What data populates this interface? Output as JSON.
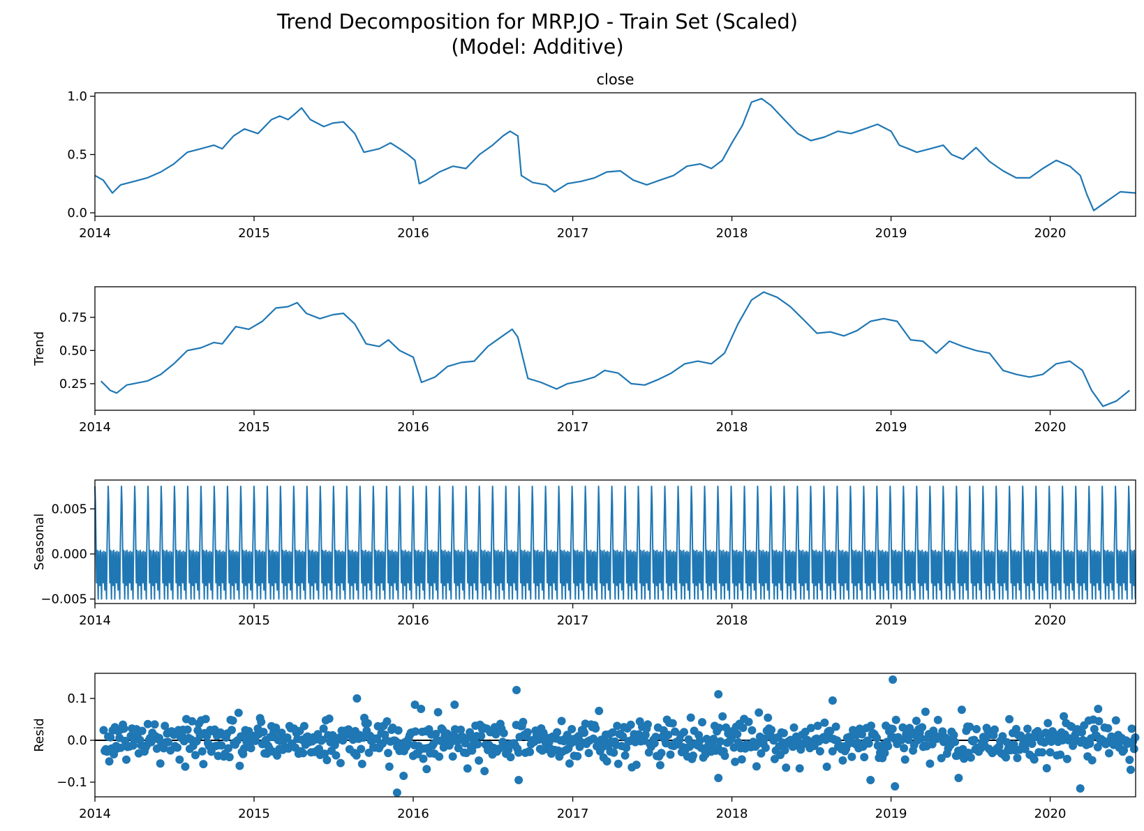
{
  "figure": {
    "title_line1": "Trend Decomposition for MRP.JO - Train Set (Scaled)",
    "title_line2": "(Model: Additive)",
    "line_color": "#1f77b4",
    "x_domain": [
      "2014-01-01",
      "2020-07-15"
    ],
    "x_ticks": [
      "2014",
      "2015",
      "2016",
      "2017",
      "2018",
      "2019",
      "2020"
    ]
  },
  "chart_data": [
    {
      "type": "line",
      "name": "close",
      "title": "close",
      "ylabel": "",
      "ylim": [
        -0.03,
        1.03
      ],
      "y_ticks": [
        {
          "v": 0.0,
          "label": "0.0"
        },
        {
          "v": 0.5,
          "label": "0.5"
        },
        {
          "v": 1.0,
          "label": "1.0"
        }
      ],
      "x": [
        "2014-01-01",
        "2014-01-20",
        "2014-02-10",
        "2014-03-01",
        "2014-04-01",
        "2014-05-01",
        "2014-06-01",
        "2014-07-01",
        "2014-08-01",
        "2014-09-01",
        "2014-10-01",
        "2014-10-20",
        "2014-11-15",
        "2014-12-10",
        "2015-01-10",
        "2015-02-10",
        "2015-03-01",
        "2015-03-20",
        "2015-04-05",
        "2015-04-20",
        "2015-05-10",
        "2015-06-10",
        "2015-07-01",
        "2015-07-25",
        "2015-08-20",
        "2015-09-10",
        "2015-10-15",
        "2015-11-10",
        "2015-12-01",
        "2015-12-20",
        "2016-01-05",
        "2016-01-15",
        "2016-02-01",
        "2016-03-01",
        "2016-04-01",
        "2016-05-01",
        "2016-06-01",
        "2016-07-01",
        "2016-07-25",
        "2016-08-10",
        "2016-08-28",
        "2016-09-05",
        "2016-10-01",
        "2016-11-01",
        "2016-11-20",
        "2016-12-20",
        "2017-01-20",
        "2017-02-20",
        "2017-03-20",
        "2017-04-20",
        "2017-05-20",
        "2017-06-20",
        "2017-07-20",
        "2017-08-20",
        "2017-09-20",
        "2017-10-20",
        "2017-11-15",
        "2017-12-10",
        "2018-01-01",
        "2018-01-25",
        "2018-02-15",
        "2018-03-10",
        "2018-04-01",
        "2018-05-01",
        "2018-06-01",
        "2018-07-01",
        "2018-08-01",
        "2018-09-01",
        "2018-10-01",
        "2018-11-01",
        "2018-12-01",
        "2019-01-01",
        "2019-01-20",
        "2019-02-10",
        "2019-03-01",
        "2019-04-01",
        "2019-05-01",
        "2019-05-20",
        "2019-06-15",
        "2019-07-15",
        "2019-08-15",
        "2019-09-15",
        "2019-10-15",
        "2019-11-15",
        "2019-12-15",
        "2020-01-15",
        "2020-02-15",
        "2020-03-10",
        "2020-03-25",
        "2020-04-10",
        "2020-05-10",
        "2020-06-10",
        "2020-07-15"
      ],
      "values": [
        0.32,
        0.28,
        0.17,
        0.24,
        0.27,
        0.3,
        0.35,
        0.42,
        0.52,
        0.55,
        0.58,
        0.55,
        0.66,
        0.72,
        0.68,
        0.8,
        0.83,
        0.8,
        0.85,
        0.9,
        0.8,
        0.74,
        0.77,
        0.78,
        0.68,
        0.52,
        0.55,
        0.6,
        0.55,
        0.5,
        0.45,
        0.25,
        0.28,
        0.35,
        0.4,
        0.38,
        0.5,
        0.58,
        0.66,
        0.7,
        0.66,
        0.32,
        0.26,
        0.24,
        0.18,
        0.25,
        0.27,
        0.3,
        0.35,
        0.36,
        0.28,
        0.24,
        0.28,
        0.32,
        0.4,
        0.42,
        0.38,
        0.45,
        0.6,
        0.75,
        0.95,
        0.98,
        0.92,
        0.8,
        0.68,
        0.62,
        0.65,
        0.7,
        0.68,
        0.72,
        0.76,
        0.7,
        0.58,
        0.55,
        0.52,
        0.55,
        0.58,
        0.5,
        0.46,
        0.56,
        0.44,
        0.36,
        0.3,
        0.3,
        0.38,
        0.45,
        0.4,
        0.32,
        0.16,
        0.02,
        0.1,
        0.18,
        0.17
      ]
    },
    {
      "type": "line",
      "name": "Trend",
      "title": "",
      "ylabel": "Trend",
      "ylim": [
        0.05,
        0.98
      ],
      "y_ticks": [
        {
          "v": 0.25,
          "label": "0.25"
        },
        {
          "v": 0.5,
          "label": "0.50"
        },
        {
          "v": 0.75,
          "label": "0.75"
        }
      ],
      "x": [
        "2014-01-15",
        "2014-02-05",
        "2014-02-20",
        "2014-03-15",
        "2014-05-01",
        "2014-06-01",
        "2014-07-01",
        "2014-08-01",
        "2014-09-01",
        "2014-10-01",
        "2014-10-20",
        "2014-11-20",
        "2014-12-20",
        "2015-01-20",
        "2015-02-20",
        "2015-03-20",
        "2015-04-10",
        "2015-05-01",
        "2015-06-01",
        "2015-07-01",
        "2015-07-25",
        "2015-08-20",
        "2015-09-15",
        "2015-10-15",
        "2015-11-05",
        "2015-12-01",
        "2016-01-01",
        "2016-01-20",
        "2016-02-20",
        "2016-03-20",
        "2016-04-20",
        "2016-05-20",
        "2016-06-20",
        "2016-07-20",
        "2016-08-15",
        "2016-08-28",
        "2016-09-20",
        "2016-10-20",
        "2016-11-25",
        "2016-12-20",
        "2017-01-20",
        "2017-02-20",
        "2017-03-15",
        "2017-04-15",
        "2017-05-15",
        "2017-06-15",
        "2017-07-15",
        "2017-08-15",
        "2017-09-15",
        "2017-10-15",
        "2017-11-15",
        "2017-12-15",
        "2018-01-15",
        "2018-02-15",
        "2018-03-15",
        "2018-04-15",
        "2018-05-15",
        "2018-06-15",
        "2018-07-15",
        "2018-08-15",
        "2018-09-15",
        "2018-10-15",
        "2018-11-15",
        "2018-12-15",
        "2019-01-15",
        "2019-02-15",
        "2019-03-15",
        "2019-04-15",
        "2019-05-15",
        "2019-06-15",
        "2019-07-15",
        "2019-08-15",
        "2019-09-15",
        "2019-10-15",
        "2019-11-15",
        "2019-12-15",
        "2020-01-15",
        "2020-02-15",
        "2020-03-15",
        "2020-04-05",
        "2020-05-01",
        "2020-06-01",
        "2020-07-01"
      ],
      "values": [
        0.27,
        0.2,
        0.18,
        0.24,
        0.27,
        0.32,
        0.4,
        0.5,
        0.52,
        0.56,
        0.55,
        0.68,
        0.66,
        0.72,
        0.82,
        0.83,
        0.86,
        0.78,
        0.74,
        0.77,
        0.78,
        0.7,
        0.55,
        0.53,
        0.58,
        0.5,
        0.45,
        0.26,
        0.3,
        0.38,
        0.41,
        0.42,
        0.53,
        0.6,
        0.66,
        0.6,
        0.29,
        0.26,
        0.21,
        0.25,
        0.27,
        0.3,
        0.35,
        0.33,
        0.25,
        0.24,
        0.28,
        0.33,
        0.4,
        0.42,
        0.4,
        0.48,
        0.7,
        0.88,
        0.94,
        0.9,
        0.83,
        0.73,
        0.63,
        0.64,
        0.61,
        0.65,
        0.72,
        0.74,
        0.72,
        0.58,
        0.57,
        0.48,
        0.57,
        0.53,
        0.5,
        0.48,
        0.35,
        0.32,
        0.3,
        0.32,
        0.4,
        0.42,
        0.35,
        0.2,
        0.08,
        0.12,
        0.2
      ]
    },
    {
      "type": "line",
      "name": "Seasonal",
      "title": "",
      "ylabel": "Seasonal",
      "ylim": [
        -0.0055,
        0.0082
      ],
      "y_ticks": [
        {
          "v": -0.005,
          "label": "−0.005"
        },
        {
          "v": 0.0,
          "label": "0.000"
        },
        {
          "v": 0.005,
          "label": "0.005"
        }
      ],
      "period_days": 30.4,
      "cycle": [
        0.0075,
        0.0055,
        0.001,
        -0.0032,
        0.0004,
        -0.0022,
        -0.005,
        0.0003,
        -0.0012,
        -0.0035,
        0.0004,
        -0.0018,
        -0.005,
        0.0002,
        -0.0008,
        -0.0032,
        0.0003,
        -0.002,
        -0.004,
        0.0002,
        -0.0026,
        -0.005,
        0.001,
        0.004
      ]
    },
    {
      "type": "scatter",
      "name": "Resid",
      "title": "",
      "ylabel": "Resid",
      "ylim": [
        -0.135,
        0.16
      ],
      "y_ticks": [
        {
          "v": -0.1,
          "label": "−0.1"
        },
        {
          "v": 0.0,
          "label": "0.0"
        },
        {
          "v": 0.1,
          "label": "0.1"
        }
      ],
      "baseline": 0.0,
      "noise_sd": 0.026,
      "outliers": [
        {
          "x": "2015-08-25",
          "y": 0.1
        },
        {
          "x": "2015-11-25",
          "y": -0.125
        },
        {
          "x": "2015-12-10",
          "y": -0.085
        },
        {
          "x": "2016-01-05",
          "y": 0.085
        },
        {
          "x": "2016-04-05",
          "y": 0.085
        },
        {
          "x": "2016-08-25",
          "y": 0.12
        },
        {
          "x": "2016-08-30",
          "y": -0.095
        },
        {
          "x": "2017-12-01",
          "y": 0.11
        },
        {
          "x": "2017-12-01",
          "y": -0.09
        },
        {
          "x": "2018-08-20",
          "y": 0.095
        },
        {
          "x": "2018-11-15",
          "y": -0.095
        },
        {
          "x": "2019-01-05",
          "y": 0.145
        },
        {
          "x": "2019-01-10",
          "y": -0.11
        },
        {
          "x": "2019-06-05",
          "y": -0.09
        },
        {
          "x": "2020-03-10",
          "y": -0.115
        },
        {
          "x": "2020-04-20",
          "y": 0.075
        }
      ]
    }
  ]
}
